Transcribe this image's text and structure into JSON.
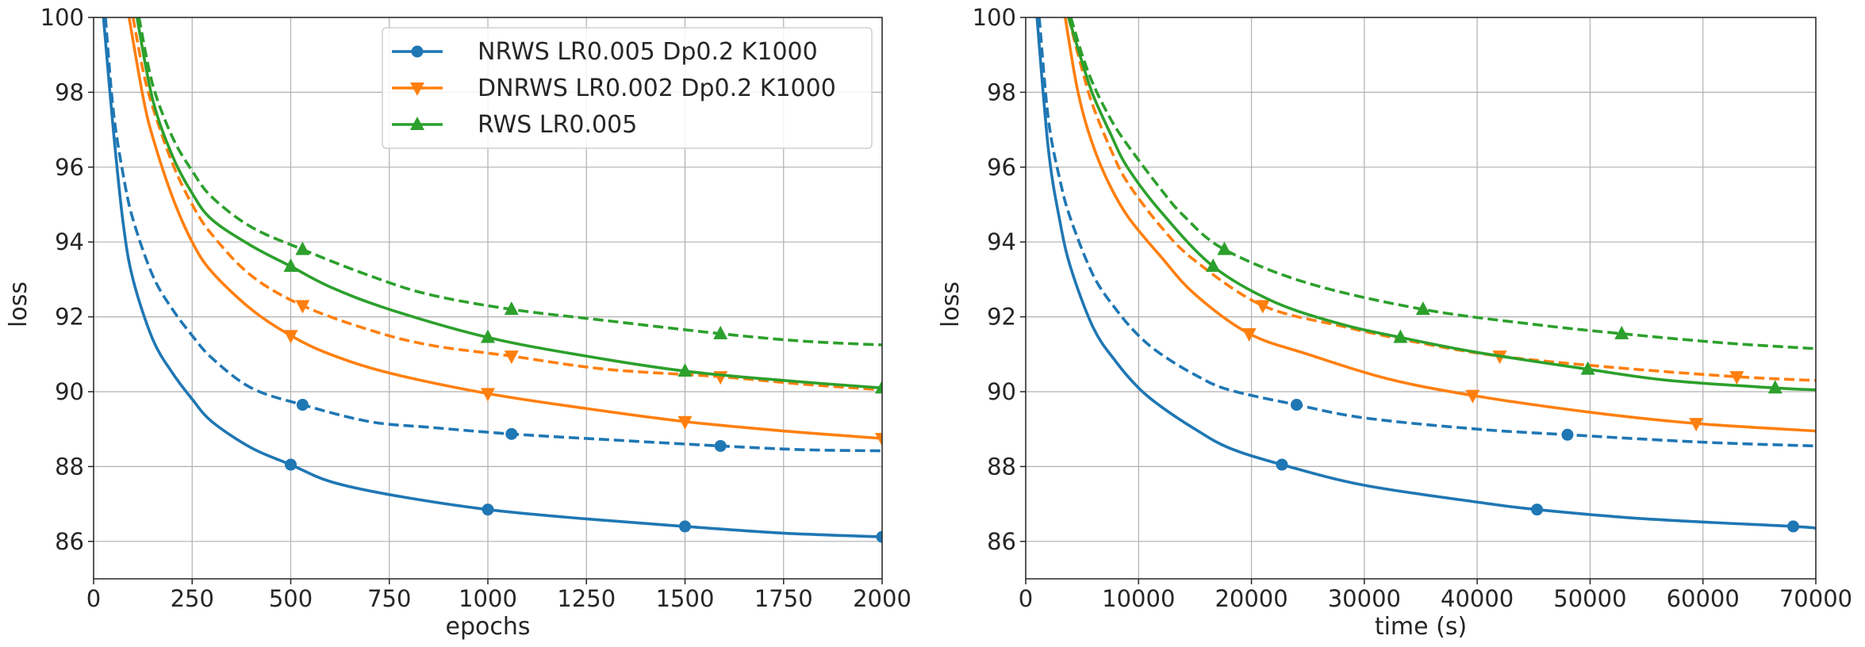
{
  "colors": {
    "NRWS": "#1f77b4",
    "DNRWS": "#ff7f0e",
    "RWS": "#2ca02c",
    "grid": "#b0b0b0",
    "axes": "#262626"
  },
  "chart_data": [
    {
      "type": "line",
      "xlabel": "epochs",
      "ylabel": "loss",
      "xlim": [
        0,
        2000
      ],
      "ylim": [
        85,
        100
      ],
      "xticks": [
        "0",
        "250",
        "500",
        "750",
        "1000",
        "1250",
        "1500",
        "1750",
        "2000"
      ],
      "yticks": [
        "86",
        "88",
        "90",
        "92",
        "94",
        "96",
        "98",
        "100"
      ],
      "grid": true,
      "legend": {
        "location": "top-right",
        "entries": [
          {
            "label": "NRWS LR0.005 Dp0.2 K1000",
            "color": "NRWS",
            "marker": "circle"
          },
          {
            "label": "DNRWS LR0.002 Dp0.2 K1000",
            "color": "DNRWS",
            "marker": "triangle-down"
          },
          {
            "label": "RWS LR0.005",
            "color": "RWS",
            "marker": "triangle-up"
          }
        ]
      },
      "series": [
        {
          "color": "NRWS",
          "style": "solid",
          "marker": "circle",
          "x": [
            25,
            50,
            75,
            100,
            150,
            200,
            250,
            300,
            400,
            500,
            600,
            750,
            1000,
            1250,
            1500,
            1750,
            2000
          ],
          "y": [
            100,
            97.0,
            94.5,
            93.0,
            91.4,
            90.5,
            89.8,
            89.2,
            88.5,
            88.05,
            87.6,
            87.25,
            86.85,
            86.6,
            86.4,
            86.22,
            86.12
          ],
          "markers_x": [
            500,
            1000,
            1500,
            2000
          ],
          "markers_y": [
            88.05,
            86.85,
            86.4,
            86.12
          ]
        },
        {
          "color": "NRWS",
          "style": "dashed",
          "marker": "circle",
          "x": [
            30,
            50,
            75,
            100,
            150,
            200,
            250,
            300,
            400,
            530,
            700,
            850,
            1060,
            1300,
            1590,
            1800,
            2000
          ],
          "y": [
            100,
            97.5,
            95.8,
            94.6,
            93.1,
            92.2,
            91.5,
            90.9,
            90.1,
            89.65,
            89.2,
            89.05,
            88.87,
            88.72,
            88.55,
            88.45,
            88.42
          ],
          "markers_x": [
            530,
            1060,
            1590
          ],
          "markers_y": [
            89.65,
            88.87,
            88.55
          ]
        },
        {
          "color": "DNRWS",
          "style": "solid",
          "marker": "triangle-down",
          "x": [
            90,
            125,
            150,
            200,
            250,
            300,
            400,
            500,
            600,
            750,
            1000,
            1250,
            1500,
            1750,
            2000
          ],
          "y": [
            100,
            97.9,
            96.8,
            95.2,
            94.0,
            93.2,
            92.2,
            91.5,
            91.0,
            90.5,
            89.95,
            89.55,
            89.2,
            88.95,
            88.75
          ],
          "markers_x": [
            500,
            1000,
            1500,
            2000
          ],
          "markers_y": [
            91.5,
            89.95,
            89.2,
            88.75
          ]
        },
        {
          "color": "DNRWS",
          "style": "dashed",
          "marker": "triangle-down",
          "x": [
            100,
            125,
            150,
            200,
            250,
            300,
            400,
            530,
            700,
            850,
            1060,
            1300,
            1590,
            1800,
            2000
          ],
          "y": [
            100,
            98.6,
            97.6,
            96.1,
            95.0,
            94.2,
            93.1,
            92.3,
            91.65,
            91.25,
            90.95,
            90.6,
            90.4,
            90.2,
            90.05
          ],
          "markers_x": [
            530,
            1060,
            1590
          ],
          "markers_y": [
            92.3,
            90.95,
            90.4
          ]
        },
        {
          "color": "RWS",
          "style": "solid",
          "marker": "triangle-up",
          "x": [
            110,
            150,
            200,
            250,
            300,
            400,
            500,
            600,
            750,
            1000,
            1250,
            1500,
            1750,
            2000
          ],
          "y": [
            100,
            97.8,
            96.3,
            95.3,
            94.6,
            93.9,
            93.35,
            92.8,
            92.2,
            91.45,
            90.95,
            90.55,
            90.3,
            90.1
          ],
          "markers_x": [
            500,
            1000,
            1500,
            2000
          ],
          "markers_y": [
            93.35,
            91.45,
            90.55,
            90.1
          ]
        },
        {
          "color": "RWS",
          "style": "dashed",
          "marker": "triangle-up",
          "x": [
            115,
            150,
            200,
            250,
            300,
            400,
            530,
            700,
            850,
            1060,
            1300,
            1590,
            1800,
            2000
          ],
          "y": [
            100,
            98.2,
            96.8,
            95.9,
            95.2,
            94.4,
            93.8,
            93.1,
            92.6,
            92.2,
            91.9,
            91.55,
            91.35,
            91.25
          ],
          "markers_x": [
            530,
            1060,
            1590
          ],
          "markers_y": [
            93.8,
            92.2,
            91.55
          ]
        }
      ]
    },
    {
      "type": "line",
      "xlabel": "time (s)",
      "ylabel": "loss",
      "xlim": [
        0,
        70000
      ],
      "ylim": [
        85,
        100
      ],
      "xticks": [
        "0",
        "10000",
        "20000",
        "30000",
        "40000",
        "50000",
        "60000",
        "70000"
      ],
      "yticks": [
        "86",
        "88",
        "90",
        "92",
        "94",
        "96",
        "98",
        "100"
      ],
      "grid": true,
      "series": [
        {
          "color": "NRWS",
          "style": "solid",
          "marker": "circle",
          "x": [
            1000,
            2000,
            3000,
            4000,
            6000,
            8000,
            10000,
            12000,
            15000,
            18000,
            22700,
            30000,
            40000,
            45300,
            55000,
            68000,
            70000
          ],
          "y": [
            100,
            96.5,
            94.6,
            93.3,
            91.7,
            90.8,
            90.1,
            89.6,
            89.0,
            88.5,
            88.05,
            87.5,
            87.05,
            86.85,
            86.6,
            86.4,
            86.35
          ],
          "markers_x": [
            22700,
            45300,
            68000
          ],
          "markers_y": [
            88.05,
            86.85,
            86.4
          ]
        },
        {
          "color": "NRWS",
          "style": "dashed",
          "marker": "circle",
          "x": [
            1200,
            2000,
            3000,
            4000,
            6000,
            8000,
            10000,
            12000,
            15000,
            18000,
            24000,
            30000,
            40000,
            48000,
            60000,
            70000
          ],
          "y": [
            100,
            97.3,
            95.7,
            94.6,
            93.1,
            92.2,
            91.5,
            91.0,
            90.45,
            90.05,
            89.65,
            89.3,
            89.0,
            88.85,
            88.65,
            88.55
          ],
          "markers_x": [
            24000,
            48000
          ],
          "markers_y": [
            89.65,
            88.85
          ]
        },
        {
          "color": "DNRWS",
          "style": "solid",
          "marker": "triangle-down",
          "x": [
            3500,
            4500,
            5500,
            7000,
            9000,
            12000,
            15000,
            19800,
            25000,
            32000,
            39600,
            50000,
            59400,
            70000
          ],
          "y": [
            100,
            98.2,
            97.0,
            95.8,
            94.7,
            93.6,
            92.6,
            91.55,
            91.0,
            90.35,
            89.9,
            89.45,
            89.15,
            88.95
          ],
          "markers_x": [
            19800,
            39600,
            59400
          ],
          "markers_y": [
            91.55,
            89.9,
            89.15
          ]
        },
        {
          "color": "DNRWS",
          "style": "dashed",
          "marker": "triangle-down",
          "x": [
            3800,
            5000,
            6000,
            7500,
            9000,
            12000,
            15000,
            21000,
            28000,
            35000,
            42000,
            52000,
            63000,
            70000
          ],
          "y": [
            100,
            98.6,
            97.6,
            96.5,
            95.6,
            94.4,
            93.5,
            92.3,
            91.75,
            91.3,
            90.95,
            90.65,
            90.4,
            90.3
          ],
          "markers_x": [
            21000,
            42000,
            63000
          ],
          "markers_y": [
            92.3,
            90.95,
            90.4
          ]
        },
        {
          "color": "RWS",
          "style": "solid",
          "marker": "triangle-up",
          "x": [
            3800,
            5000,
            6000,
            7500,
            9000,
            12000,
            16600,
            22000,
            28000,
            33200,
            40000,
            49800,
            57000,
            66400,
            70000
          ],
          "y": [
            100,
            98.8,
            97.9,
            96.9,
            96.0,
            94.8,
            93.35,
            92.4,
            91.8,
            91.45,
            91.05,
            90.6,
            90.3,
            90.1,
            90.05
          ],
          "markers_x": [
            16600,
            33200,
            49800,
            66400
          ],
          "markers_y": [
            93.35,
            91.45,
            90.6,
            90.1
          ]
        },
        {
          "color": "RWS",
          "style": "dashed",
          "marker": "triangle-up",
          "x": [
            4000,
            5000,
            6000,
            7500,
            9000,
            12000,
            14000,
            17600,
            25000,
            35200,
            45000,
            52800,
            62000,
            70000
          ],
          "y": [
            100,
            99.0,
            98.2,
            97.3,
            96.6,
            95.4,
            94.7,
            93.8,
            92.9,
            92.2,
            91.8,
            91.55,
            91.3,
            91.15
          ],
          "markers_x": [
            17600,
            35200,
            52800
          ],
          "markers_y": [
            93.8,
            92.2,
            91.55
          ]
        }
      ]
    }
  ]
}
